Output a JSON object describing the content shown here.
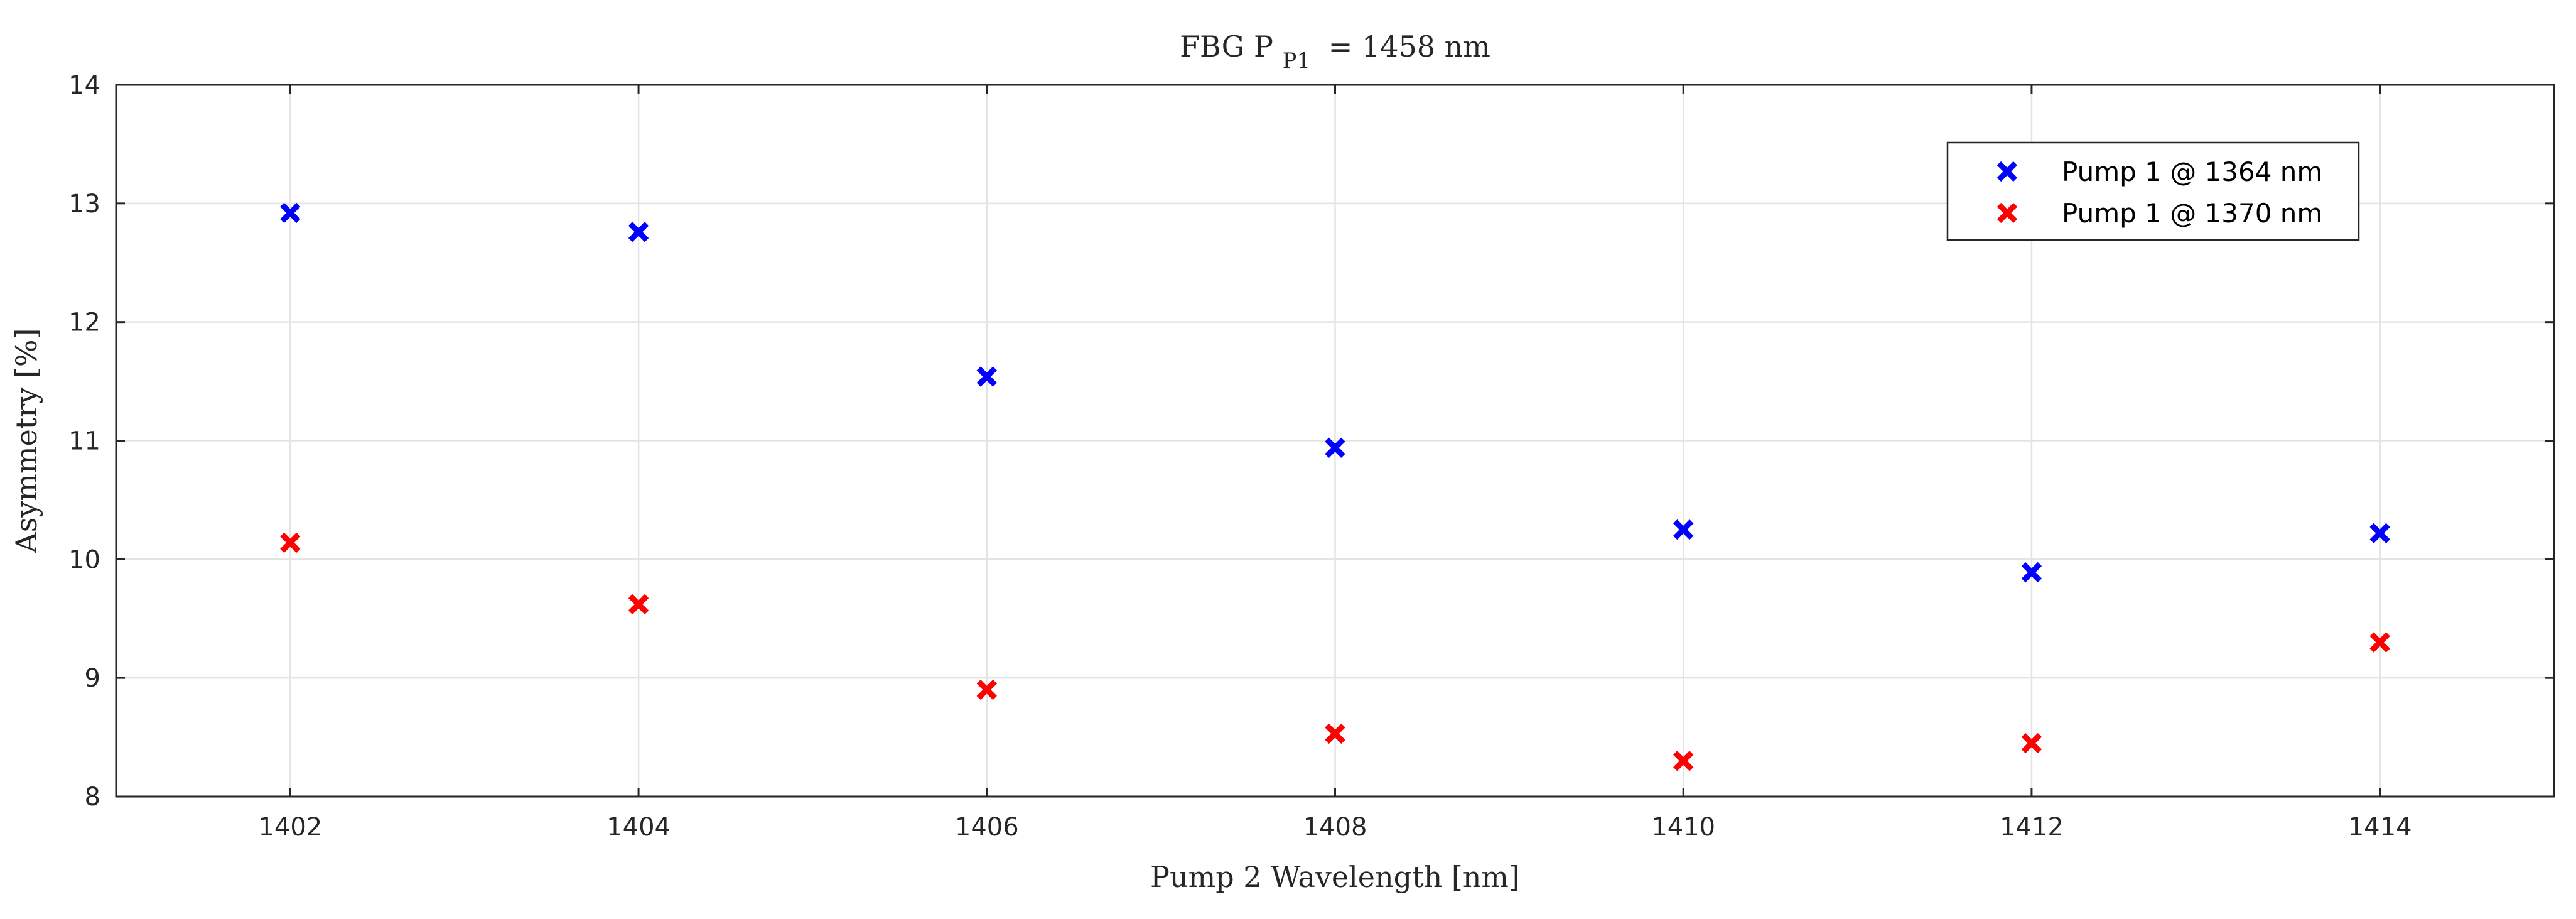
{
  "chart_data": {
    "type": "scatter",
    "title": "FBG P",
    "title_subscript": "P1",
    "title_suffix": "= 1458 nm",
    "xlabel": "Pump 2 Wavelength [nm]",
    "ylabel": "Asymmetry [%]",
    "xlim": [
      1401,
      1415
    ],
    "ylim": [
      8,
      14
    ],
    "xticks": [
      1402,
      1404,
      1406,
      1408,
      1410,
      1412,
      1414
    ],
    "yticks": [
      8,
      9,
      10,
      11,
      12,
      13,
      14
    ],
    "grid": true,
    "legend_position": "top-right",
    "marker": "x",
    "x": [
      1402,
      1404,
      1406,
      1408,
      1410,
      1412,
      1414
    ],
    "series": [
      {
        "name": "Pump 1 @ 1364 nm",
        "color": "#0000ff",
        "values": [
          12.92,
          12.76,
          11.54,
          10.94,
          10.25,
          9.89,
          10.22
        ]
      },
      {
        "name": "Pump 1 @ 1370 nm",
        "color": "#ff0000",
        "values": [
          10.14,
          9.62,
          8.9,
          8.53,
          8.3,
          8.45,
          9.3
        ]
      }
    ]
  }
}
